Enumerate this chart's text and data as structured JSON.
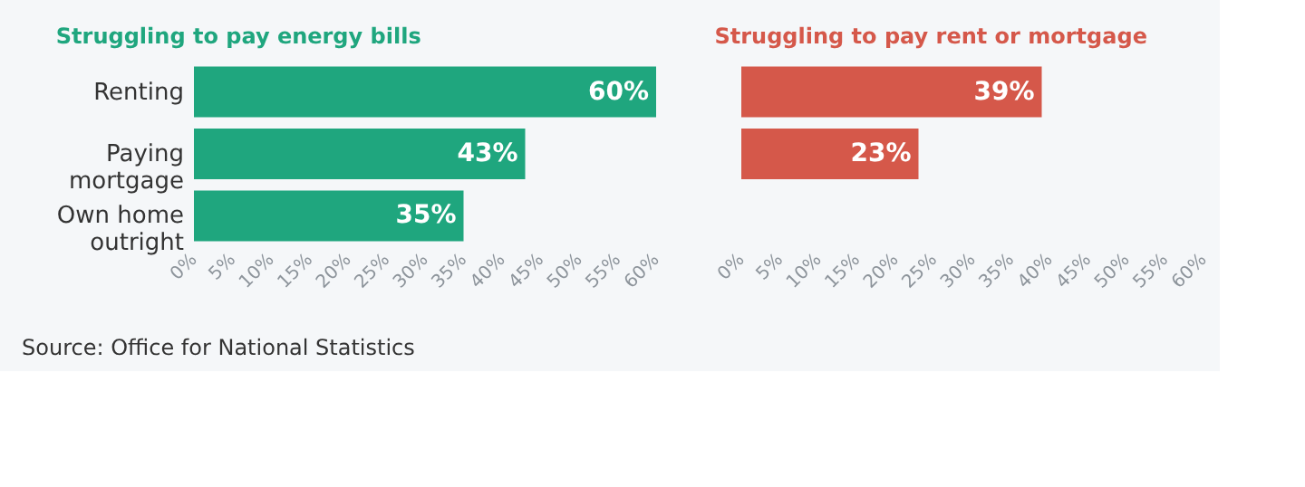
{
  "chart_data": [
    {
      "type": "bar",
      "orientation": "horizontal",
      "title": "Struggling to pay energy bills",
      "categories": [
        "Renting",
        "Paying mortgage",
        "Own home outright"
      ],
      "series": [
        {
          "color": "#1fa67e",
          "values": [
            60,
            43,
            35
          ],
          "value_labels": [
            "60%",
            "43%",
            "35%"
          ]
        }
      ],
      "xlim": [
        0,
        60
      ],
      "xticks": [
        {
          "value": 0,
          "label": "0%"
        },
        {
          "value": 5,
          "label": "5%"
        },
        {
          "value": 10,
          "label": "10%"
        },
        {
          "value": 15,
          "label": "15%"
        },
        {
          "value": 20,
          "label": "20%"
        },
        {
          "value": 25,
          "label": "25%"
        },
        {
          "value": 30,
          "label": "30%"
        },
        {
          "value": 35,
          "label": "35%"
        },
        {
          "value": 40,
          "label": "40%"
        },
        {
          "value": 45,
          "label": "45%"
        },
        {
          "value": 50,
          "label": "50%"
        },
        {
          "value": 55,
          "label": "55%"
        },
        {
          "value": 60,
          "label": "60%"
        }
      ],
      "grid": false,
      "annotations": [
        "Source: Office for National Statistics"
      ]
    },
    {
      "type": "bar",
      "orientation": "horizontal",
      "title": "Struggling to pay rent or mortgage",
      "categories": [
        null,
        null,
        null
      ],
      "series": [
        {
          "color": "#d5584a",
          "values": [
            39,
            23,
            null
          ],
          "value_labels": [
            "39%",
            "23%",
            null
          ]
        }
      ],
      "xlim": [
        0,
        60
      ],
      "xticks": [
        {
          "value": 0,
          "label": "0%"
        },
        {
          "value": 5,
          "label": "5%"
        },
        {
          "value": 10,
          "label": "10%"
        },
        {
          "value": 15,
          "label": "15%"
        },
        {
          "value": 20,
          "label": "20%"
        },
        {
          "value": 25,
          "label": "25%"
        },
        {
          "value": 30,
          "label": "30%"
        },
        {
          "value": 35,
          "label": "35%"
        },
        {
          "value": 40,
          "label": "40%"
        },
        {
          "value": 45,
          "label": "45%"
        },
        {
          "value": 50,
          "label": "50%"
        },
        {
          "value": 55,
          "label": "55%"
        },
        {
          "value": 60,
          "label": "60%"
        }
      ],
      "grid": false,
      "tick_labels": "x"
    }
  ]
}
